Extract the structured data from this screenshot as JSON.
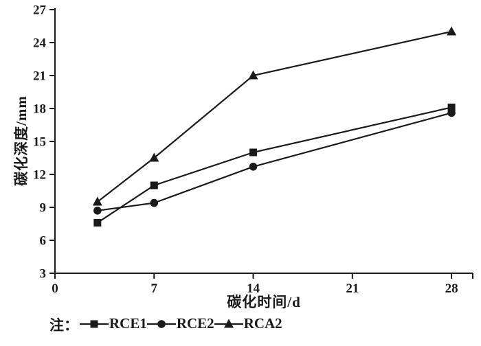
{
  "chart_data": {
    "type": "line",
    "title": "",
    "x": [
      3,
      7,
      14,
      28
    ],
    "series": [
      {
        "name": "RCE1",
        "marker": "square",
        "values": [
          7.6,
          11.0,
          14.0,
          18.1
        ]
      },
      {
        "name": "RCE2",
        "marker": "circle",
        "values": [
          8.7,
          9.4,
          12.7,
          17.6
        ]
      },
      {
        "name": "RCA2",
        "marker": "triangle",
        "values": [
          9.5,
          13.5,
          21.0,
          25.0
        ]
      }
    ],
    "xlabel": "碳化时间/d",
    "ylabel": "碳化深度/mm",
    "xlim": [
      0,
      29.5
    ],
    "ylim": [
      3,
      27
    ],
    "xticks": [
      0,
      7,
      14,
      21,
      28
    ],
    "yticks": [
      3,
      6,
      9,
      12,
      15,
      18,
      21,
      24,
      27
    ],
    "grid": false,
    "legend_position": "bottom-left",
    "line_color": "#1a1a1a"
  },
  "legend": {
    "prefix": "注："
  }
}
